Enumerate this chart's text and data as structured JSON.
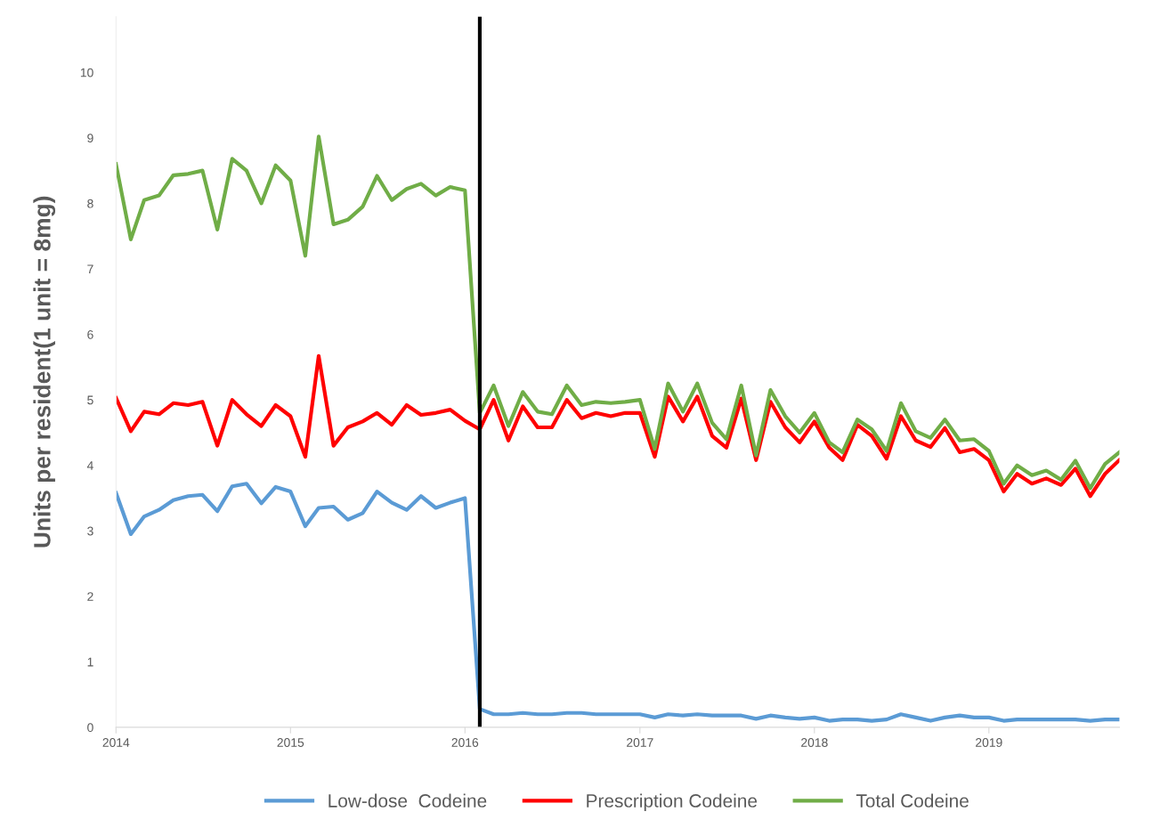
{
  "chart_data": {
    "type": "line",
    "ylabel": "Units per resident(1 unit = 8mg)",
    "x": [
      "2014-01",
      "2014-02",
      "2014-03",
      "2014-04",
      "2014-05",
      "2014-06",
      "2014-07",
      "2014-08",
      "2014-09",
      "2014-10",
      "2014-11",
      "2014-12",
      "2015-01",
      "2015-02",
      "2015-03",
      "2015-04",
      "2015-05",
      "2015-06",
      "2015-07",
      "2015-08",
      "2015-09",
      "2015-10",
      "2015-11",
      "2015-12",
      "2016-01",
      "2016-02",
      "2016-03",
      "2016-04",
      "2016-05",
      "2016-06",
      "2016-07",
      "2016-08",
      "2016-09",
      "2016-10",
      "2016-11",
      "2016-12",
      "2017-01",
      "2017-02",
      "2017-03",
      "2017-04",
      "2017-05",
      "2017-06",
      "2017-07",
      "2017-08",
      "2017-09",
      "2017-10",
      "2017-11",
      "2017-12",
      "2018-01",
      "2018-02",
      "2018-03",
      "2018-04",
      "2018-05",
      "2018-06",
      "2018-07",
      "2018-08",
      "2018-09",
      "2018-10",
      "2018-11",
      "2018-12",
      "2019-01",
      "2019-02",
      "2019-03",
      "2019-04",
      "2019-05",
      "2019-06",
      "2019-07",
      "2019-08",
      "2019-09",
      "2019-10"
    ],
    "series": [
      {
        "name": "Low-dose  Codeine",
        "color": "#5b9bd5",
        "values": [
          3.58,
          2.95,
          3.22,
          3.32,
          3.47,
          3.53,
          3.55,
          3.3,
          3.68,
          3.72,
          3.42,
          3.67,
          3.6,
          3.07,
          3.35,
          3.37,
          3.17,
          3.27,
          3.6,
          3.43,
          3.32,
          3.53,
          3.35,
          3.43,
          3.5,
          0.28,
          0.2,
          0.2,
          0.22,
          0.2,
          0.2,
          0.22,
          0.22,
          0.2,
          0.2,
          0.2,
          0.2,
          0.15,
          0.2,
          0.18,
          0.2,
          0.18,
          0.18,
          0.18,
          0.13,
          0.18,
          0.15,
          0.13,
          0.15,
          0.1,
          0.12,
          0.12,
          0.1,
          0.12,
          0.2,
          0.15,
          0.1,
          0.15,
          0.18,
          0.15,
          0.15,
          0.1,
          0.12,
          0.12,
          0.12,
          0.12,
          0.12,
          0.1,
          0.12,
          0.12
        ]
      },
      {
        "name": "Prescription Codeine",
        "color": "#ff0000",
        "values": [
          5.03,
          4.52,
          4.82,
          4.78,
          4.95,
          4.92,
          4.97,
          4.3,
          5.0,
          4.78,
          4.6,
          4.92,
          4.75,
          4.13,
          5.67,
          4.3,
          4.58,
          4.67,
          4.8,
          4.62,
          4.92,
          4.77,
          4.8,
          4.85,
          4.68,
          4.55,
          5.0,
          4.38,
          4.9,
          4.58,
          4.58,
          5.0,
          4.72,
          4.8,
          4.75,
          4.8,
          4.8,
          4.13,
          5.05,
          4.67,
          5.05,
          4.45,
          4.27,
          5.02,
          4.08,
          4.97,
          4.58,
          4.35,
          4.67,
          4.27,
          4.08,
          4.62,
          4.45,
          4.1,
          4.75,
          4.38,
          4.28,
          4.57,
          4.2,
          4.25,
          4.08,
          3.6,
          3.87,
          3.72,
          3.8,
          3.7,
          3.95,
          3.53,
          3.87,
          4.08
        ]
      },
      {
        "name": "Total Codeine",
        "color": "#70ad47",
        "values": [
          8.6,
          7.45,
          8.05,
          8.12,
          8.43,
          8.45,
          8.5,
          7.6,
          8.68,
          8.5,
          8.0,
          8.58,
          8.35,
          7.2,
          9.02,
          7.68,
          7.75,
          7.95,
          8.42,
          8.05,
          8.22,
          8.3,
          8.12,
          8.25,
          8.2,
          4.8,
          5.22,
          4.6,
          5.12,
          4.82,
          4.78,
          5.22,
          4.92,
          4.97,
          4.95,
          4.97,
          5.0,
          4.25,
          5.25,
          4.82,
          5.25,
          4.65,
          4.4,
          5.22,
          4.15,
          5.15,
          4.75,
          4.5,
          4.8,
          4.35,
          4.2,
          4.7,
          4.55,
          4.22,
          4.95,
          4.52,
          4.42,
          4.7,
          4.38,
          4.4,
          4.22,
          3.72,
          4.0,
          3.85,
          3.92,
          3.78,
          4.07,
          3.65,
          4.02,
          4.2
        ]
      }
    ],
    "xlim": [
      "2014-01",
      "2019-10"
    ],
    "xticks": [
      {
        "value": "2014-01",
        "label": "2014"
      },
      {
        "value": "2015-01",
        "label": "2015"
      },
      {
        "value": "2016-01",
        "label": "2016"
      },
      {
        "value": "2017-01",
        "label": "2017"
      },
      {
        "value": "2018-01",
        "label": "2018"
      },
      {
        "value": "2019-01",
        "label": "2019"
      }
    ],
    "ylim": [
      0,
      10.85
    ],
    "yticks": [
      0,
      1,
      2,
      3,
      4,
      5,
      6,
      7,
      8,
      9,
      10
    ],
    "ref_lines": [
      {
        "axis": "x",
        "value": "2016-02",
        "color": "#000000"
      }
    ],
    "grid": false,
    "legend": "bottom",
    "marker": "none",
    "line_style": "solid"
  }
}
